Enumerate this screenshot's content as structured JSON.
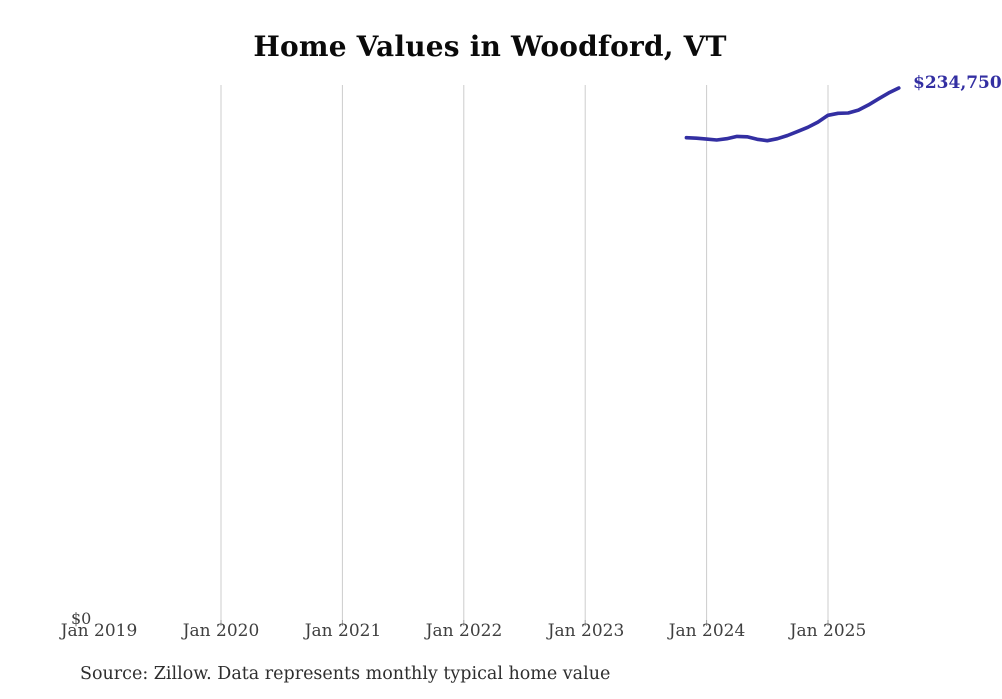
{
  "chart_data": {
    "type": "line",
    "title": "Home Values in Woodford, VT",
    "xlabel": "",
    "ylabel": "",
    "x_ticks": [
      "Jan 2019",
      "Jan 2020",
      "Jan 2021",
      "Jan 2022",
      "Jan 2023",
      "Jan 2024",
      "Jan 2025"
    ],
    "y_tick_labels": [
      "$0"
    ],
    "ylim": [
      0,
      236000
    ],
    "grid": "vertical-only, no gridline at first tick",
    "legend": "none",
    "end_label": "$234,750",
    "line_color": "#332fa2",
    "grid_color": "#cccccc",
    "tick_color": "#999999",
    "series": [
      {
        "name": "Monthly typical home value",
        "x": [
          "2023-11",
          "2023-12",
          "2024-01",
          "2024-02",
          "2024-03",
          "2024-04",
          "2024-05",
          "2024-06",
          "2024-07",
          "2024-08",
          "2024-09",
          "2024-10",
          "2024-11",
          "2024-12",
          "2025-01",
          "2025-02",
          "2025-03",
          "2025-04",
          "2025-05",
          "2025-06",
          "2025-07",
          "2025-08"
        ],
        "values": [
          212800,
          212600,
          212200,
          211800,
          212400,
          213400,
          213200,
          212100,
          211500,
          212400,
          213800,
          215600,
          217400,
          219700,
          222700,
          223600,
          223700,
          225000,
          227300,
          230000,
          232600,
          234750
        ]
      }
    ],
    "source_note": "Source: Zillow. Data represents monthly typical home value"
  }
}
